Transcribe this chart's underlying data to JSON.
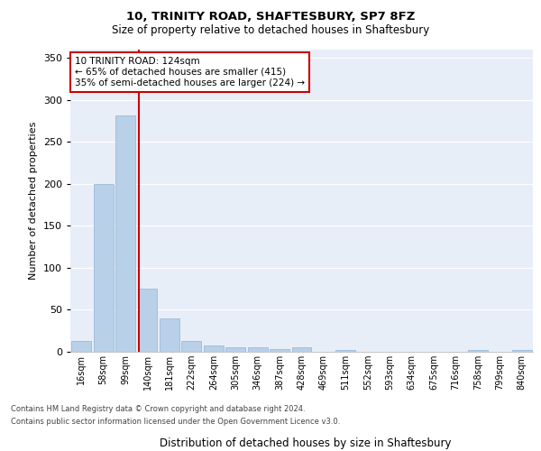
{
  "title1": "10, TRINITY ROAD, SHAFTESBURY, SP7 8FZ",
  "title2": "Size of property relative to detached houses in Shaftesbury",
  "xlabel": "Distribution of detached houses by size in Shaftesbury",
  "ylabel": "Number of detached properties",
  "footnote1": "Contains HM Land Registry data © Crown copyright and database right 2024.",
  "footnote2": "Contains public sector information licensed under the Open Government Licence v3.0.",
  "bar_labels": [
    "16sqm",
    "58sqm",
    "99sqm",
    "140sqm",
    "181sqm",
    "222sqm",
    "264sqm",
    "305sqm",
    "346sqm",
    "387sqm",
    "428sqm",
    "469sqm",
    "511sqm",
    "552sqm",
    "593sqm",
    "634sqm",
    "675sqm",
    "716sqm",
    "758sqm",
    "799sqm",
    "840sqm"
  ],
  "bar_values": [
    13,
    200,
    282,
    75,
    40,
    13,
    8,
    5,
    5,
    3,
    5,
    0,
    2,
    0,
    0,
    0,
    0,
    0,
    2,
    0,
    2
  ],
  "bar_color": "#b8d0e8",
  "bar_edgecolor": "#90b4d4",
  "vline_x": 2.62,
  "vline_color": "#cc0000",
  "annotation_text": "10 TRINITY ROAD: 124sqm\n← 65% of detached houses are smaller (415)\n35% of semi-detached houses are larger (224) →",
  "annotation_box_color": "#ffffff",
  "annotation_box_edgecolor": "#cc0000",
  "ylim": [
    0,
    360
  ],
  "yticks": [
    0,
    50,
    100,
    150,
    200,
    250,
    300,
    350
  ],
  "plot_bg_color": "#e8eef8",
  "grid_color": "#ffffff"
}
